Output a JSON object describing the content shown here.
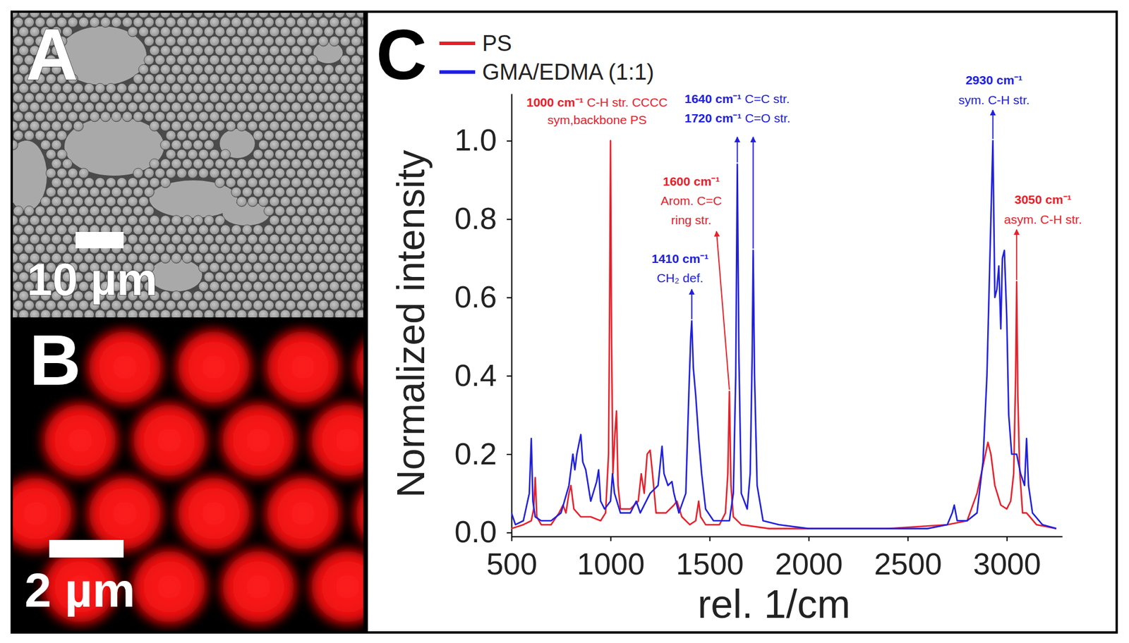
{
  "panel_labels": [
    "A",
    "B",
    "C"
  ],
  "images": [
    {
      "scale_bar": "10 µm"
    },
    {
      "scale_bar": "2 µm"
    }
  ],
  "chart_data": {
    "type": "line",
    "x_label": "rel. 1/cm",
    "y_label": "Normalized intensity",
    "xlim": [
      500,
      3280
    ],
    "xticks": [
      500,
      1000,
      1500,
      2000,
      2500,
      3000
    ],
    "ylim": [
      -0.01,
      1.12
    ],
    "yticks": [
      {
        "value": 0,
        "label": "0.0"
      },
      {
        "value": 0.2,
        "label": "0.2"
      },
      {
        "value": 0.4,
        "label": "0.4"
      },
      {
        "value": 0.6,
        "label": "0.6"
      },
      {
        "value": 0.8,
        "label": "0.8"
      },
      {
        "value": 1,
        "label": "1.0"
      }
    ],
    "legend": "top",
    "series": [
      {
        "name": "PS",
        "color": "#e8202a",
        "x": [
          500,
          560,
          600,
          612,
          620,
          628,
          650,
          700,
          740,
          760,
          775,
          790,
          800,
          815,
          850,
          900,
          950,
          975,
          990,
          995,
          1000,
          1005,
          1012,
          1022,
          1030,
          1038,
          1050,
          1100,
          1140,
          1155,
          1170,
          1185,
          1200,
          1212,
          1230,
          1280,
          1320,
          1335,
          1360,
          1400,
          1430,
          1445,
          1455,
          1480,
          1550,
          1580,
          1592,
          1600,
          1608,
          1620,
          1660,
          1800,
          2000,
          2400,
          2700,
          2800,
          2850,
          2880,
          2905,
          2920,
          2940,
          2970,
          3000,
          3020,
          3035,
          3045,
          3050,
          3056,
          3065,
          3080,
          3100,
          3150,
          3250
        ],
        "values": [
          0.01,
          0.02,
          0.03,
          0.06,
          0.14,
          0.04,
          0.02,
          0.02,
          0.05,
          0.07,
          0.05,
          0.1,
          0.12,
          0.06,
          0.04,
          0.04,
          0.03,
          0.05,
          0.2,
          0.55,
          1.0,
          0.5,
          0.15,
          0.25,
          0.31,
          0.12,
          0.06,
          0.06,
          0.08,
          0.15,
          0.1,
          0.2,
          0.21,
          0.15,
          0.05,
          0.05,
          0.07,
          0.08,
          0.04,
          0.02,
          0.03,
          0.08,
          0.04,
          0.02,
          0.02,
          0.05,
          0.15,
          0.36,
          0.12,
          0.04,
          0.02,
          0.01,
          0.01,
          0.01,
          0.02,
          0.03,
          0.1,
          0.17,
          0.23,
          0.2,
          0.12,
          0.07,
          0.06,
          0.08,
          0.15,
          0.4,
          0.64,
          0.35,
          0.16,
          0.05,
          0.05,
          0.02,
          0.01
        ]
      },
      {
        "name": "GMA/EDMA (1:1)",
        "color": "#2020e0",
        "x": [
          500,
          520,
          560,
          590,
          600,
          608,
          620,
          650,
          700,
          750,
          790,
          810,
          820,
          830,
          850,
          860,
          875,
          900,
          930,
          940,
          950,
          970,
          1000,
          1010,
          1020,
          1050,
          1100,
          1130,
          1150,
          1200,
          1240,
          1260,
          1270,
          1290,
          1310,
          1320,
          1345,
          1380,
          1395,
          1405,
          1410,
          1418,
          1430,
          1445,
          1460,
          1480,
          1520,
          1600,
          1620,
          1632,
          1640,
          1648,
          1660,
          1690,
          1705,
          1715,
          1720,
          1727,
          1740,
          1770,
          1850,
          2000,
          2300,
          2600,
          2700,
          2725,
          2735,
          2750,
          2800,
          2850,
          2880,
          2900,
          2915,
          2930,
          2940,
          2950,
          2960,
          2970,
          2978,
          2988,
          3000,
          3010,
          3025,
          3050,
          3070,
          3090,
          3100,
          3110,
          3130,
          3180,
          3250
        ],
        "values": [
          0.05,
          0.02,
          0.03,
          0.1,
          0.24,
          0.08,
          0.04,
          0.03,
          0.03,
          0.05,
          0.12,
          0.2,
          0.16,
          0.2,
          0.25,
          0.18,
          0.16,
          0.08,
          0.13,
          0.16,
          0.08,
          0.06,
          0.08,
          0.15,
          0.1,
          0.05,
          0.05,
          0.08,
          0.05,
          0.1,
          0.12,
          0.22,
          0.15,
          0.12,
          0.13,
          0.1,
          0.05,
          0.1,
          0.35,
          0.5,
          0.54,
          0.42,
          0.35,
          0.24,
          0.15,
          0.06,
          0.03,
          0.03,
          0.1,
          0.4,
          0.94,
          0.45,
          0.1,
          0.06,
          0.15,
          0.45,
          0.72,
          0.4,
          0.12,
          0.03,
          0.02,
          0.01,
          0.01,
          0.01,
          0.02,
          0.05,
          0.07,
          0.03,
          0.03,
          0.05,
          0.18,
          0.4,
          0.7,
          1.0,
          0.6,
          0.62,
          0.68,
          0.52,
          0.7,
          0.72,
          0.55,
          0.3,
          0.2,
          0.2,
          0.15,
          0.12,
          0.24,
          0.12,
          0.05,
          0.02,
          0.01
        ]
      }
    ],
    "annotations": [
      {
        "head": "1000 cm⁻¹",
        "lines": [
          "C-H str. CCCC",
          "sym,backbone PS"
        ],
        "x": 1000,
        "y": 1.0,
        "color": "#e8202a"
      },
      {
        "head": "1640 cm⁻¹",
        "lines": [
          "C=C str."
        ],
        "x": 1640,
        "y": 0.94,
        "color": "#2020e0"
      },
      {
        "head": "1720 cm⁻¹",
        "lines": [
          "C=O str."
        ],
        "x": 1720,
        "y": 0.72,
        "color": "#2020e0"
      },
      {
        "head": "1600 cm⁻¹",
        "lines": [
          "Arom. C=C",
          "ring str."
        ],
        "x": 1600,
        "y": 0.36,
        "color": "#e8202a"
      },
      {
        "head": "1410 cm⁻¹",
        "lines": [
          "CH₂ def."
        ],
        "x": 1410,
        "y": 0.54,
        "color": "#2020e0"
      },
      {
        "head": "2930 cm⁻¹",
        "lines": [
          "sym. C-H str."
        ],
        "x": 2930,
        "y": 1.0,
        "color": "#2020e0"
      },
      {
        "head": "3050 cm⁻¹",
        "lines": [
          "asym. C-H str."
        ],
        "x": 3050,
        "y": 0.64,
        "color": "#e8202a"
      }
    ]
  }
}
